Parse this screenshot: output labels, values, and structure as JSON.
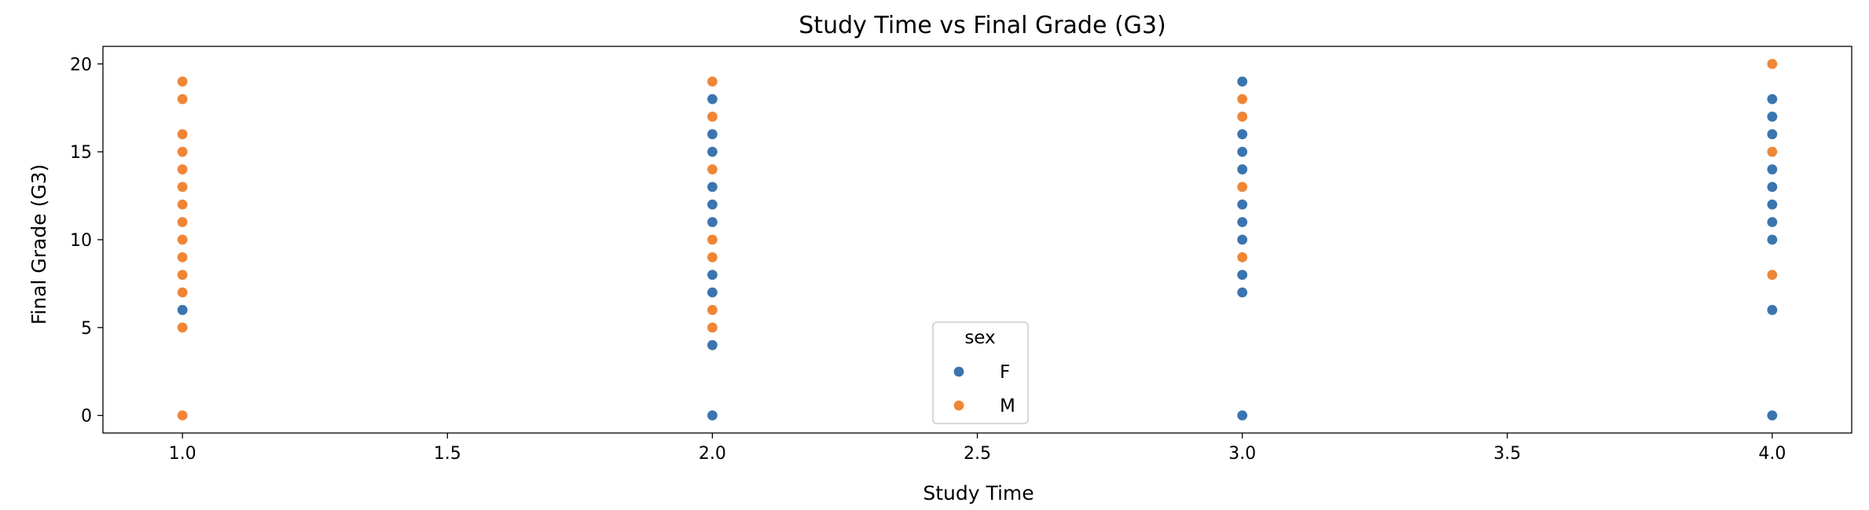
{
  "chart_data": {
    "type": "scatter",
    "title": "Study Time vs Final Grade (G3)",
    "xlabel": "Study Time",
    "ylabel": "Final Grade (G3)",
    "xlim": [
      0.85,
      4.15
    ],
    "ylim": [
      -1,
      21
    ],
    "xticks": [
      1.0,
      1.5,
      2.0,
      2.5,
      3.0,
      3.5,
      4.0
    ],
    "xtick_labels": [
      "1.0",
      "1.5",
      "2.0",
      "2.5",
      "3.0",
      "3.5",
      "4.0"
    ],
    "yticks": [
      0,
      5,
      10,
      15,
      20
    ],
    "ytick_labels": [
      "0",
      "5",
      "10",
      "15",
      "20"
    ],
    "grid": false,
    "legend": {
      "title": "sex",
      "placement": "bottom-center"
    },
    "series": [
      {
        "name": "F",
        "color": "#3a75af",
        "points": [
          [
            1,
            6
          ],
          [
            1,
            7
          ],
          [
            1,
            8
          ],
          [
            1,
            9
          ],
          [
            1,
            10
          ],
          [
            1,
            11
          ],
          [
            1,
            12
          ],
          [
            1,
            13
          ],
          [
            1,
            14
          ],
          [
            1,
            15
          ],
          [
            2,
            0
          ],
          [
            2,
            4
          ],
          [
            2,
            5
          ],
          [
            2,
            6
          ],
          [
            2,
            7
          ],
          [
            2,
            8
          ],
          [
            2,
            9
          ],
          [
            2,
            10
          ],
          [
            2,
            11
          ],
          [
            2,
            12
          ],
          [
            2,
            13
          ],
          [
            2,
            14
          ],
          [
            2,
            15
          ],
          [
            2,
            16
          ],
          [
            2,
            18
          ],
          [
            3,
            0
          ],
          [
            3,
            7
          ],
          [
            3,
            8
          ],
          [
            3,
            9
          ],
          [
            3,
            10
          ],
          [
            3,
            11
          ],
          [
            3,
            12
          ],
          [
            3,
            13
          ],
          [
            3,
            14
          ],
          [
            3,
            15
          ],
          [
            3,
            16
          ],
          [
            3,
            17
          ],
          [
            3,
            19
          ],
          [
            4,
            0
          ],
          [
            4,
            6
          ],
          [
            4,
            10
          ],
          [
            4,
            11
          ],
          [
            4,
            12
          ],
          [
            4,
            13
          ],
          [
            4,
            14
          ],
          [
            4,
            15
          ],
          [
            4,
            16
          ],
          [
            4,
            17
          ],
          [
            4,
            18
          ]
        ]
      },
      {
        "name": "M",
        "color": "#ef8636",
        "points": [
          [
            1,
            0
          ],
          [
            1,
            5
          ],
          [
            1,
            7
          ],
          [
            1,
            8
          ],
          [
            1,
            9
          ],
          [
            1,
            10
          ],
          [
            1,
            11
          ],
          [
            1,
            12
          ],
          [
            1,
            13
          ],
          [
            1,
            14
          ],
          [
            1,
            15
          ],
          [
            1,
            16
          ],
          [
            1,
            18
          ],
          [
            1,
            19
          ],
          [
            2,
            5
          ],
          [
            2,
            6
          ],
          [
            2,
            9
          ],
          [
            2,
            10
          ],
          [
            2,
            14
          ],
          [
            2,
            17
          ],
          [
            2,
            19
          ],
          [
            3,
            9
          ],
          [
            3,
            13
          ],
          [
            3,
            17
          ],
          [
            3,
            18
          ],
          [
            4,
            8
          ],
          [
            4,
            15
          ],
          [
            4,
            20
          ]
        ]
      }
    ]
  }
}
